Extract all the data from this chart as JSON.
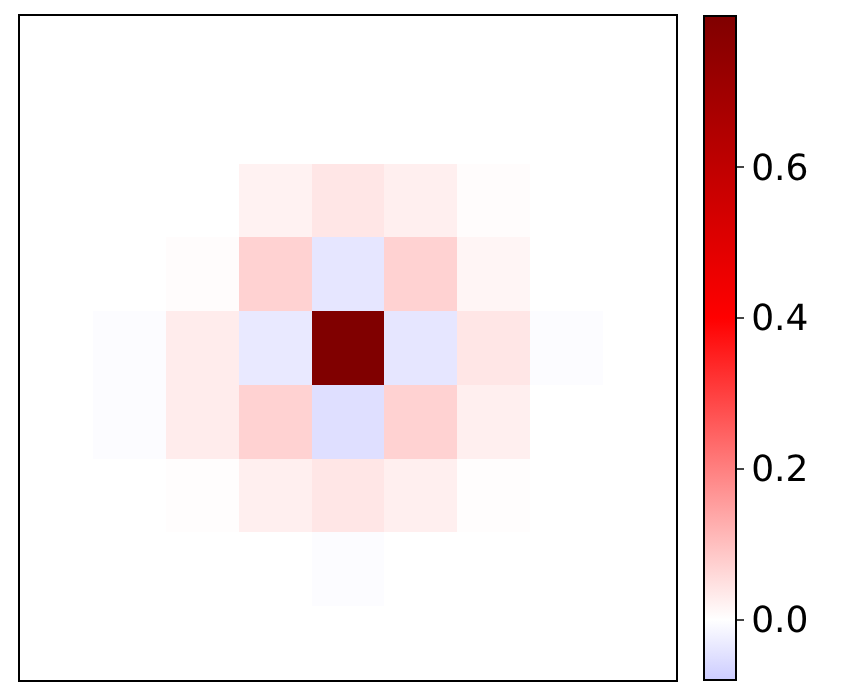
{
  "chart_data": {
    "type": "heatmap",
    "categories": [
      null,
      null,
      null,
      null,
      null,
      null,
      null,
      null,
      null
    ],
    "y_categories": [
      null,
      null,
      null,
      null,
      null,
      null,
      null,
      null,
      null
    ],
    "cells": [
      [
        0,
        0,
        0,
        0,
        0,
        0,
        0,
        0,
        0
      ],
      [
        0,
        0,
        0,
        0,
        0,
        0,
        0,
        0,
        0
      ],
      [
        0,
        0,
        0,
        0.02,
        0.04,
        0.025,
        0.005,
        0,
        0
      ],
      [
        0,
        0,
        0.005,
        0.07,
        -0.04,
        0.07,
        0.015,
        0,
        0
      ],
      [
        0,
        -0.005,
        0.03,
        -0.035,
        0.8,
        -0.04,
        0.04,
        -0.005,
        0
      ],
      [
        0,
        -0.005,
        0.03,
        0.07,
        -0.05,
        0.07,
        0.025,
        0,
        0
      ],
      [
        0,
        0,
        0.003,
        0.025,
        0.04,
        0.025,
        0.003,
        0,
        0
      ],
      [
        0,
        0,
        0,
        0,
        -0.005,
        0,
        0,
        0,
        0
      ],
      [
        0,
        0,
        0,
        0,
        0,
        0,
        0,
        0,
        0
      ]
    ],
    "clim": [
      -0.08,
      0.8
    ],
    "cticks": [
      {
        "value": 0,
        "label": "0.0"
      },
      0.2,
      0.4,
      0.6
    ]
  }
}
